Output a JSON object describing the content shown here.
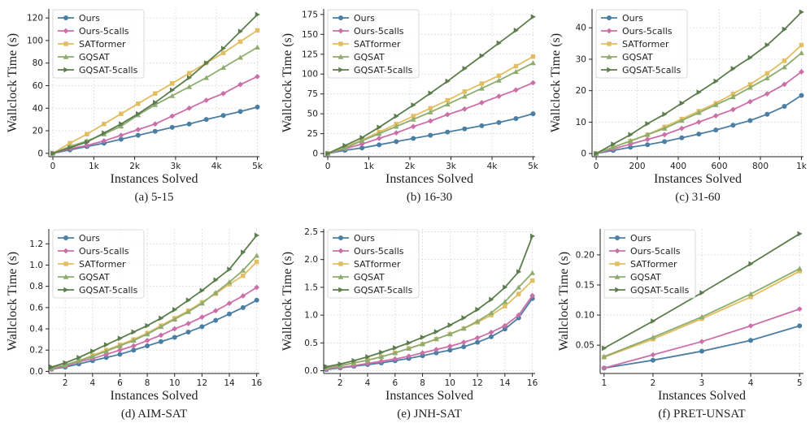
{
  "figure": {
    "description_free": true
  },
  "colors": {
    "Ours": "#4a7fa3",
    "Ours-5calls": "#cc6fa8",
    "SATformer": "#e2bd62",
    "GQSAT": "#8eac6e",
    "GQSAT-5calls": "#5c7d4d"
  },
  "markers": {
    "Ours": "circle",
    "Ours-5calls": "diamond",
    "SATformer": "square",
    "GQSAT": "triangle-up",
    "GQSAT-5calls": "triangle-right"
  },
  "chart_data": [
    {
      "type": "line",
      "caption": "(a) 5-15",
      "xlabel": "Instances Solved",
      "ylabel": "Wallclock  Time  (s)",
      "xlim": [
        -100,
        5050
      ],
      "ylim": [
        -3,
        128
      ],
      "xticks": [
        0,
        1000,
        2000,
        3000,
        4000,
        5000
      ],
      "xtick_labels": [
        "0",
        "1k",
        "2k",
        "3k",
        "4k",
        "5k"
      ],
      "yticks": [
        0,
        20,
        40,
        60,
        80,
        100,
        120
      ],
      "ytick_labels": [
        "0",
        "20",
        "40",
        "60",
        "80",
        "100",
        "120"
      ],
      "legend_position": "top-left",
      "x": [
        0,
        417,
        833,
        1250,
        1667,
        2083,
        2500,
        2917,
        3333,
        3750,
        4167,
        4583,
        5000
      ],
      "series": [
        {
          "name": "Ours",
          "values": [
            0,
            3,
            6,
            9,
            12.5,
            16,
            19.5,
            23,
            26,
            30,
            33.5,
            37,
            41
          ]
        },
        {
          "name": "Ours-5calls",
          "values": [
            0,
            4,
            7,
            11,
            16,
            21,
            26,
            33,
            40,
            47,
            53,
            61,
            68
          ]
        },
        {
          "name": "SATformer",
          "values": [
            0,
            9,
            17,
            26,
            35,
            44,
            53,
            62,
            71,
            80,
            89,
            99,
            109
          ]
        },
        {
          "name": "GQSAT",
          "values": [
            0,
            6,
            11,
            17,
            24,
            34,
            43,
            51,
            59,
            67,
            76,
            85,
            94
          ]
        },
        {
          "name": "GQSAT-5calls",
          "values": [
            0,
            5,
            10,
            18,
            26,
            35,
            45,
            56,
            67,
            80,
            93,
            108,
            123
          ]
        }
      ]
    },
    {
      "type": "line",
      "caption": "(b) 16-30",
      "xlabel": "Instances Solved",
      "ylabel": "Wallclock  Time  (s)",
      "xlim": [
        -100,
        5050
      ],
      "ylim": [
        -4,
        182
      ],
      "xticks": [
        0,
        1000,
        2000,
        3000,
        4000,
        5000
      ],
      "xtick_labels": [
        "0",
        "1k",
        "2k",
        "3k",
        "4k",
        "5k"
      ],
      "yticks": [
        0,
        25,
        50,
        75,
        100,
        125,
        150,
        175
      ],
      "ytick_labels": [
        "0",
        "25",
        "50",
        "75",
        "100",
        "125",
        "150",
        "175"
      ],
      "legend_position": "top-left",
      "x": [
        0,
        417,
        833,
        1250,
        1667,
        2083,
        2500,
        2917,
        3333,
        3750,
        4167,
        4583,
        5000
      ],
      "series": [
        {
          "name": "Ours",
          "values": [
            0,
            4,
            7,
            11,
            15,
            19,
            23,
            27,
            31,
            35,
            39,
            44,
            50
          ]
        },
        {
          "name": "Ours-5calls",
          "values": [
            0,
            6,
            12,
            19,
            26,
            34,
            41,
            49,
            56,
            64,
            72,
            80,
            89
          ]
        },
        {
          "name": "SATformer",
          "values": [
            0,
            8,
            17,
            27,
            37,
            47,
            57,
            67,
            78,
            88,
            98,
            110,
            122
          ]
        },
        {
          "name": "GQSAT",
          "values": [
            0,
            7,
            16,
            25,
            34,
            43,
            52,
            62,
            72,
            82,
            92,
            103,
            114
          ]
        },
        {
          "name": "GQSAT-5calls",
          "values": [
            0,
            10,
            20,
            33,
            47,
            61,
            76,
            91,
            107,
            123,
            139,
            155,
            172
          ]
        }
      ]
    },
    {
      "type": "line",
      "caption": "(c) 31-60",
      "xlabel": "Instances Solved",
      "ylabel": "Wallclock  Time  (s)",
      "xlim": [
        -20,
        1010
      ],
      "ylim": [
        -1,
        46
      ],
      "xticks": [
        0,
        200,
        400,
        600,
        800,
        1000
      ],
      "xtick_labels": [
        "0",
        "200",
        "400",
        "600",
        "800",
        "1k"
      ],
      "yticks": [
        0,
        10,
        20,
        30,
        40
      ],
      "ytick_labels": [
        "0",
        "10",
        "20",
        "30",
        "40"
      ],
      "legend_position": "top-left",
      "x": [
        0,
        83,
        167,
        250,
        333,
        417,
        500,
        583,
        667,
        750,
        833,
        917,
        1000
      ],
      "series": [
        {
          "name": "Ours",
          "values": [
            0,
            1,
            2,
            2.8,
            3.8,
            5,
            6.2,
            7.5,
            9,
            10.5,
            12.5,
            15,
            18.5
          ]
        },
        {
          "name": "Ours-5calls",
          "values": [
            0,
            1.5,
            3,
            4.5,
            6,
            8,
            10,
            12,
            14,
            16.5,
            19,
            22,
            26
          ]
        },
        {
          "name": "SATformer",
          "values": [
            0,
            2,
            4,
            6,
            8.5,
            11,
            13.5,
            16,
            19,
            22,
            25.5,
            29.5,
            34.5
          ]
        },
        {
          "name": "GQSAT",
          "values": [
            0,
            2,
            4,
            6,
            8,
            10.5,
            13,
            15.5,
            18,
            21,
            24,
            27.5,
            32
          ]
        },
        {
          "name": "GQSAT-5calls",
          "values": [
            0,
            3,
            6,
            9.5,
            12.5,
            16,
            19.5,
            23,
            27,
            30.5,
            34.5,
            39.5,
            45
          ]
        }
      ]
    },
    {
      "type": "line",
      "caption": "(d) AIM-SAT",
      "xlabel": "Instances Solved",
      "ylabel": "Wallclock  Time  (s)",
      "xlim": [
        0.8,
        16.2
      ],
      "ylim": [
        -0.02,
        1.34
      ],
      "xticks": [
        2,
        4,
        6,
        8,
        10,
        12,
        14,
        16
      ],
      "xtick_labels": [
        "2",
        "4",
        "6",
        "8",
        "10",
        "12",
        "14",
        "16"
      ],
      "yticks": [
        0,
        0.2,
        0.4,
        0.6,
        0.8,
        1.0,
        1.2
      ],
      "ytick_labels": [
        "0.0",
        "0.2",
        "0.4",
        "0.6",
        "0.8",
        "1.0",
        "1.2"
      ],
      "legend_position": "top-left",
      "x": [
        1,
        2,
        3,
        4,
        5,
        6,
        7,
        8,
        9,
        10,
        11,
        12,
        13,
        14,
        15,
        16
      ],
      "series": [
        {
          "name": "Ours",
          "values": [
            0.02,
            0.04,
            0.07,
            0.1,
            0.13,
            0.16,
            0.2,
            0.24,
            0.28,
            0.32,
            0.37,
            0.42,
            0.48,
            0.54,
            0.6,
            0.67
          ]
        },
        {
          "name": "Ours-5calls",
          "values": [
            0.02,
            0.05,
            0.09,
            0.12,
            0.16,
            0.2,
            0.24,
            0.29,
            0.34,
            0.4,
            0.45,
            0.51,
            0.57,
            0.64,
            0.71,
            0.79
          ]
        },
        {
          "name": "SATformer",
          "values": [
            0.03,
            0.06,
            0.1,
            0.15,
            0.2,
            0.25,
            0.3,
            0.36,
            0.43,
            0.5,
            0.57,
            0.65,
            0.73,
            0.82,
            0.9,
            1.03
          ]
        },
        {
          "name": "GQSAT",
          "values": [
            0.03,
            0.06,
            0.1,
            0.14,
            0.19,
            0.24,
            0.29,
            0.35,
            0.42,
            0.49,
            0.56,
            0.64,
            0.74,
            0.84,
            0.95,
            1.09
          ]
        },
        {
          "name": "GQSAT-5calls",
          "values": [
            0.04,
            0.08,
            0.13,
            0.19,
            0.25,
            0.31,
            0.37,
            0.43,
            0.5,
            0.58,
            0.67,
            0.76,
            0.86,
            0.96,
            1.12,
            1.28
          ]
        }
      ]
    },
    {
      "type": "line",
      "caption": "(e) JNH-SAT",
      "xlabel": "Instances Solved",
      "ylabel": "Wallclock  Time  (s)",
      "xlim": [
        0.8,
        16.2
      ],
      "ylim": [
        -0.05,
        2.55
      ],
      "xticks": [
        2,
        4,
        6,
        8,
        10,
        12,
        14,
        16
      ],
      "xtick_labels": [
        "2",
        "4",
        "6",
        "8",
        "10",
        "12",
        "14",
        "16"
      ],
      "yticks": [
        0,
        0.5,
        1.0,
        1.5,
        2.0,
        2.5
      ],
      "ytick_labels": [
        "0.0",
        "0.5",
        "1.0",
        "1.5",
        "2.0",
        "2.5"
      ],
      "legend_position": "top-left",
      "x": [
        1,
        2,
        3,
        4,
        5,
        6,
        7,
        8,
        9,
        10,
        11,
        12,
        13,
        14,
        15,
        16
      ],
      "series": [
        {
          "name": "Ours",
          "values": [
            0.02,
            0.05,
            0.08,
            0.11,
            0.14,
            0.18,
            0.22,
            0.27,
            0.32,
            0.37,
            0.43,
            0.51,
            0.61,
            0.75,
            0.95,
            1.3
          ]
        },
        {
          "name": "Ours-5calls",
          "values": [
            0.03,
            0.06,
            0.09,
            0.13,
            0.17,
            0.21,
            0.26,
            0.32,
            0.38,
            0.44,
            0.51,
            0.59,
            0.69,
            0.81,
            1.0,
            1.35
          ]
        },
        {
          "name": "SATformer",
          "values": [
            0.05,
            0.09,
            0.14,
            0.19,
            0.25,
            0.32,
            0.4,
            0.48,
            0.57,
            0.66,
            0.76,
            0.87,
            1.0,
            1.16,
            1.38,
            1.62
          ]
        },
        {
          "name": "GQSAT",
          "values": [
            0.05,
            0.09,
            0.14,
            0.19,
            0.25,
            0.32,
            0.4,
            0.48,
            0.57,
            0.66,
            0.76,
            0.89,
            1.04,
            1.24,
            1.5,
            1.76
          ]
        },
        {
          "name": "GQSAT-5calls",
          "values": [
            0.07,
            0.12,
            0.18,
            0.25,
            0.33,
            0.41,
            0.5,
            0.6,
            0.7,
            0.82,
            0.95,
            1.1,
            1.28,
            1.5,
            1.78,
            2.42
          ]
        }
      ]
    },
    {
      "type": "line",
      "caption": "(f) PRET-UNSAT",
      "xlabel": "Instances Solved",
      "ylabel": "Wallclock  Time  (s)",
      "xlim": [
        0.92,
        5.08
      ],
      "ylim": [
        0.003,
        0.243
      ],
      "xticks": [
        1,
        2,
        3,
        4,
        5
      ],
      "xtick_labels": [
        "1",
        "2",
        "3",
        "4",
        "5"
      ],
      "yticks": [
        0.05,
        0.1,
        0.15,
        0.2
      ],
      "ytick_labels": [
        "0.05",
        "0.10",
        "0.15",
        "0.20"
      ],
      "legend_position": "top-left",
      "x": [
        1,
        2,
        3,
        4,
        5
      ],
      "series": [
        {
          "name": "Ours",
          "values": [
            0.012,
            0.025,
            0.04,
            0.058,
            0.082
          ]
        },
        {
          "name": "Ours-5calls",
          "values": [
            0.012,
            0.034,
            0.056,
            0.082,
            0.11
          ]
        },
        {
          "name": "SATformer",
          "values": [
            0.03,
            0.06,
            0.094,
            0.13,
            0.173
          ]
        },
        {
          "name": "GQSAT",
          "values": [
            0.031,
            0.063,
            0.097,
            0.135,
            0.177
          ]
        },
        {
          "name": "GQSAT-5calls",
          "values": [
            0.045,
            0.09,
            0.137,
            0.185,
            0.235
          ]
        }
      ]
    }
  ]
}
